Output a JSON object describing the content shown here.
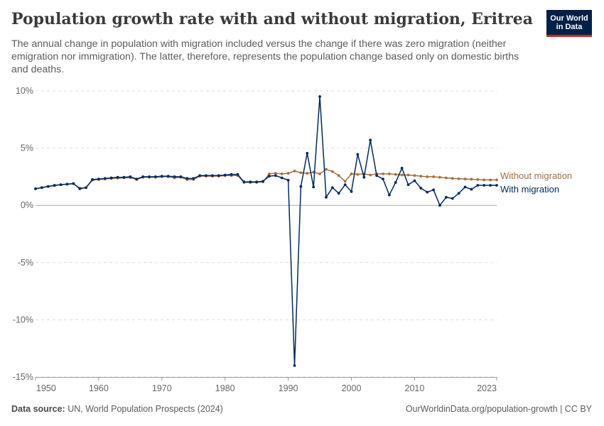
{
  "header": {
    "title": "Population growth rate with and without migration, Eritrea",
    "subtitle": "The annual change in population with migration included versus the change if there was zero migration (neither emigration nor immigration). The latter, therefore, represents the population change based only on domestic births and deaths."
  },
  "logo": {
    "line1": "Our World",
    "line2": "in Data",
    "bg_color": "#002147",
    "accent_color": "#ce261e"
  },
  "footer": {
    "source_label": "Data source:",
    "source_text": "UN, World Population Prospects (2024)",
    "url_text": "OurWorldinData.org/population-growth | CC BY"
  },
  "chart_data": {
    "type": "line",
    "title": "Population growth rate with and without migration, Eritrea",
    "xlim": [
      1950,
      2023
    ],
    "ylim": [
      -15,
      10
    ],
    "y_ticks": [
      -15,
      -10,
      -5,
      0,
      5,
      10
    ],
    "y_tick_labels": [
      "-15%",
      "-10%",
      "-5%",
      "0%",
      "5%",
      "10%"
    ],
    "x_ticks": [
      1950,
      1960,
      1970,
      1980,
      1990,
      2000,
      2010,
      2023
    ],
    "x_tick_labels": [
      "1950",
      "1960",
      "1970",
      "1980",
      "1990",
      "2000",
      "2010",
      "2023"
    ],
    "grid": "horizontal dashed",
    "legend": "inline labels at right end of lines",
    "series": [
      {
        "name": "Without migration",
        "color": "#a2703f",
        "x": [
          1950,
          1951,
          1952,
          1953,
          1954,
          1955,
          1956,
          1957,
          1958,
          1959,
          1960,
          1961,
          1962,
          1963,
          1964,
          1965,
          1966,
          1967,
          1968,
          1969,
          1970,
          1971,
          1972,
          1973,
          1974,
          1975,
          1976,
          1977,
          1978,
          1979,
          1980,
          1981,
          1982,
          1983,
          1984,
          1985,
          1986,
          1987,
          1988,
          1989,
          1990,
          1991,
          1992,
          1993,
          1994,
          1995,
          1996,
          1997,
          1998,
          1999,
          2000,
          2001,
          2002,
          2003,
          2004,
          2005,
          2006,
          2007,
          2008,
          2009,
          2010,
          2011,
          2012,
          2013,
          2014,
          2015,
          2016,
          2017,
          2018,
          2019,
          2020,
          2021,
          2022,
          2023
        ],
        "values": [
          1.45,
          1.55,
          1.65,
          1.72,
          1.8,
          1.85,
          1.9,
          1.5,
          1.55,
          2.2,
          2.25,
          2.3,
          2.35,
          2.38,
          2.4,
          2.42,
          2.25,
          2.45,
          2.45,
          2.45,
          2.5,
          2.5,
          2.4,
          2.45,
          2.25,
          2.25,
          2.55,
          2.55,
          2.55,
          2.55,
          2.6,
          2.6,
          2.6,
          2.0,
          2.0,
          2.0,
          2.05,
          2.75,
          2.8,
          2.75,
          2.8,
          3.0,
          2.85,
          2.8,
          2.9,
          2.75,
          3.15,
          2.95,
          2.6,
          2.1,
          2.75,
          2.7,
          2.75,
          2.65,
          2.75,
          2.75,
          2.75,
          2.7,
          2.65,
          2.65,
          2.6,
          2.55,
          2.5,
          2.5,
          2.45,
          2.4,
          2.35,
          2.32,
          2.3,
          2.28,
          2.25,
          2.22,
          2.22,
          2.22
        ]
      },
      {
        "name": "With migration",
        "color": "#00295b",
        "x": [
          1950,
          1951,
          1952,
          1953,
          1954,
          1955,
          1956,
          1957,
          1958,
          1959,
          1960,
          1961,
          1962,
          1963,
          1964,
          1965,
          1966,
          1967,
          1968,
          1969,
          1970,
          1971,
          1972,
          1973,
          1974,
          1975,
          1976,
          1977,
          1978,
          1979,
          1980,
          1981,
          1982,
          1983,
          1984,
          1985,
          1986,
          1987,
          1988,
          1989,
          1990,
          1991,
          1992,
          1993,
          1994,
          1995,
          1996,
          1997,
          1998,
          1999,
          2000,
          2001,
          2002,
          2003,
          2004,
          2005,
          2006,
          2007,
          2008,
          2009,
          2010,
          2011,
          2012,
          2013,
          2014,
          2015,
          2016,
          2017,
          2018,
          2019,
          2020,
          2021,
          2022,
          2023
        ],
        "values": [
          1.45,
          1.55,
          1.65,
          1.75,
          1.8,
          1.85,
          1.9,
          1.45,
          1.55,
          2.25,
          2.3,
          2.35,
          2.4,
          2.45,
          2.45,
          2.5,
          2.3,
          2.5,
          2.5,
          2.5,
          2.55,
          2.55,
          2.5,
          2.5,
          2.35,
          2.35,
          2.6,
          2.6,
          2.6,
          2.6,
          2.65,
          2.7,
          2.7,
          2.05,
          2.05,
          2.05,
          2.1,
          2.55,
          2.6,
          2.4,
          2.2,
          -14.0,
          1.65,
          4.55,
          1.6,
          9.5,
          0.7,
          1.55,
          1.05,
          1.8,
          1.2,
          4.45,
          2.45,
          5.7,
          2.6,
          2.3,
          0.9,
          2.0,
          3.25,
          1.8,
          2.15,
          1.5,
          1.15,
          1.35,
          0.0,
          0.7,
          0.6,
          1.05,
          1.6,
          1.4,
          1.75,
          1.75,
          1.75,
          1.75
        ]
      }
    ]
  }
}
